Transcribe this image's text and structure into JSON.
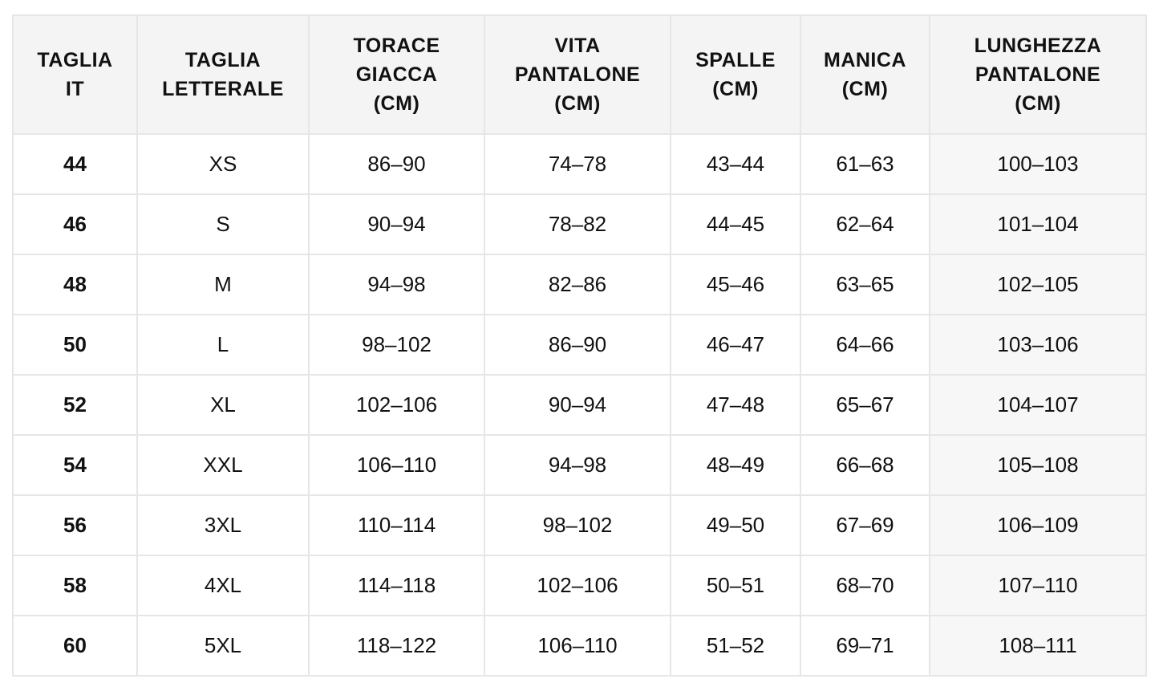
{
  "table": {
    "headers": [
      "TAGLIA\nIT",
      "TAGLIA\nLETTERALE",
      "TORACE\nGIACCA\n(CM)",
      "VITA\nPANTALONE\n(CM)",
      "SPALLE\n(CM)",
      "MANICA\n(CM)",
      "LUNGHEZZA\nPANTALONE\n(CM)"
    ],
    "rows": [
      [
        "44",
        "XS",
        "86–90",
        "74–78",
        "43–44",
        "61–63",
        "100–103"
      ],
      [
        "46",
        "S",
        "90–94",
        "78–82",
        "44–45",
        "62–64",
        "101–104"
      ],
      [
        "48",
        "M",
        "94–98",
        "82–86",
        "45–46",
        "63–65",
        "102–105"
      ],
      [
        "50",
        "L",
        "98–102",
        "86–90",
        "46–47",
        "64–66",
        "103–106"
      ],
      [
        "52",
        "XL",
        "102–106",
        "90–94",
        "47–48",
        "65–67",
        "104–107"
      ],
      [
        "54",
        "XXL",
        "106–110",
        "94–98",
        "48–49",
        "66–68",
        "105–108"
      ],
      [
        "56",
        "3XL",
        "110–114",
        "98–102",
        "49–50",
        "67–69",
        "106–109"
      ],
      [
        "58",
        "4XL",
        "114–118",
        "102–106",
        "50–51",
        "68–70",
        "107–110"
      ],
      [
        "60",
        "5XL",
        "118–122",
        "106–110",
        "51–52",
        "69–71",
        "108–111"
      ]
    ]
  }
}
